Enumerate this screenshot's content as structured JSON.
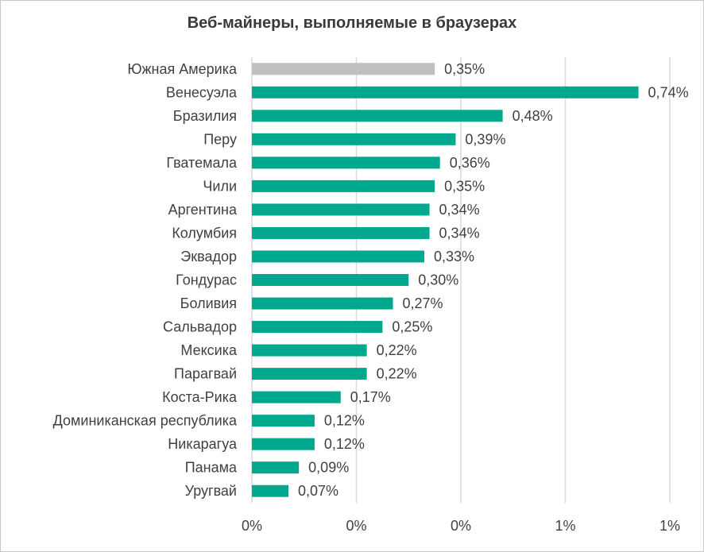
{
  "chart_data": {
    "type": "bar",
    "orientation": "horizontal",
    "title": "Веб-майнеры, выполняемые в браузерах",
    "categories": [
      "Южная Америка",
      "Венесуэла",
      "Бразилия",
      "Перу",
      "Гватемала",
      "Чили",
      "Аргентина",
      "Колумбия",
      "Эквадор",
      "Гондурас",
      "Боливия",
      "Сальвадор",
      "Мексика",
      "Парагвай",
      "Коста-Рика",
      "Доминиканская республика",
      "Никарагуа",
      "Панама",
      "Уругвай"
    ],
    "values": [
      0.35,
      0.74,
      0.48,
      0.39,
      0.36,
      0.35,
      0.34,
      0.34,
      0.33,
      0.3,
      0.27,
      0.25,
      0.22,
      0.22,
      0.17,
      0.12,
      0.12,
      0.09,
      0.07
    ],
    "value_labels": [
      "0,35%",
      "0,74%",
      "0,48%",
      "0,39%",
      "0,36%",
      "0,35%",
      "0,34%",
      "0,34%",
      "0,33%",
      "0,30%",
      "0,27%",
      "0,25%",
      "0,22%",
      "0,22%",
      "0,17%",
      "0,12%",
      "0,12%",
      "0,09%",
      "0,07%"
    ],
    "xticks": [
      "0%",
      "0%",
      "0%",
      "1%",
      "1%"
    ],
    "xlim": [
      0,
      0.8
    ],
    "xlabel": "",
    "ylabel": "",
    "grid": "vertical",
    "colors": {
      "default": "#00a88e",
      "highlight": "#bfbfbf"
    },
    "highlight_index": 0
  }
}
